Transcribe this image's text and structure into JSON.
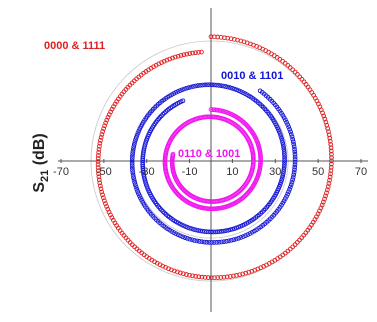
{
  "chart_data": {
    "type": "scatter",
    "title": "",
    "ylabel": "S21 (dB)",
    "ylabel_main": "S",
    "ylabel_sub": "21",
    "ylabel_unit": " (dB)",
    "xlim": [
      -70,
      70
    ],
    "ticks": [
      -70,
      -50,
      -30,
      -10,
      10,
      30,
      50,
      70
    ],
    "tick_labels": [
      "-70",
      "-50",
      "-30",
      "-10",
      "10",
      "30",
      "50",
      "70"
    ],
    "grid_rings": [
      36,
      56
    ],
    "grid": true,
    "legend": "none",
    "series": [
      {
        "name": "0000 & 1111",
        "color": "#e01f1f",
        "marker": "open-circle",
        "radius_start": 58,
        "radius_end": 51,
        "angle_start_deg": 90,
        "sweep_deg": 355,
        "points": 230
      },
      {
        "name": "0010 & 1101",
        "color": "#1414d4",
        "marker": "open-circle",
        "radius_start": 40,
        "radius_end": 31,
        "angle_start_deg": 55,
        "sweep_deg": 660,
        "points": 380
      },
      {
        "name": "0110 & 1001",
        "color": "#f018f0",
        "marker": "open-circle",
        "radius_start": 24,
        "radius_end": 18,
        "angle_start_deg": 90,
        "sweep_deg": 640,
        "points": 380
      }
    ]
  }
}
